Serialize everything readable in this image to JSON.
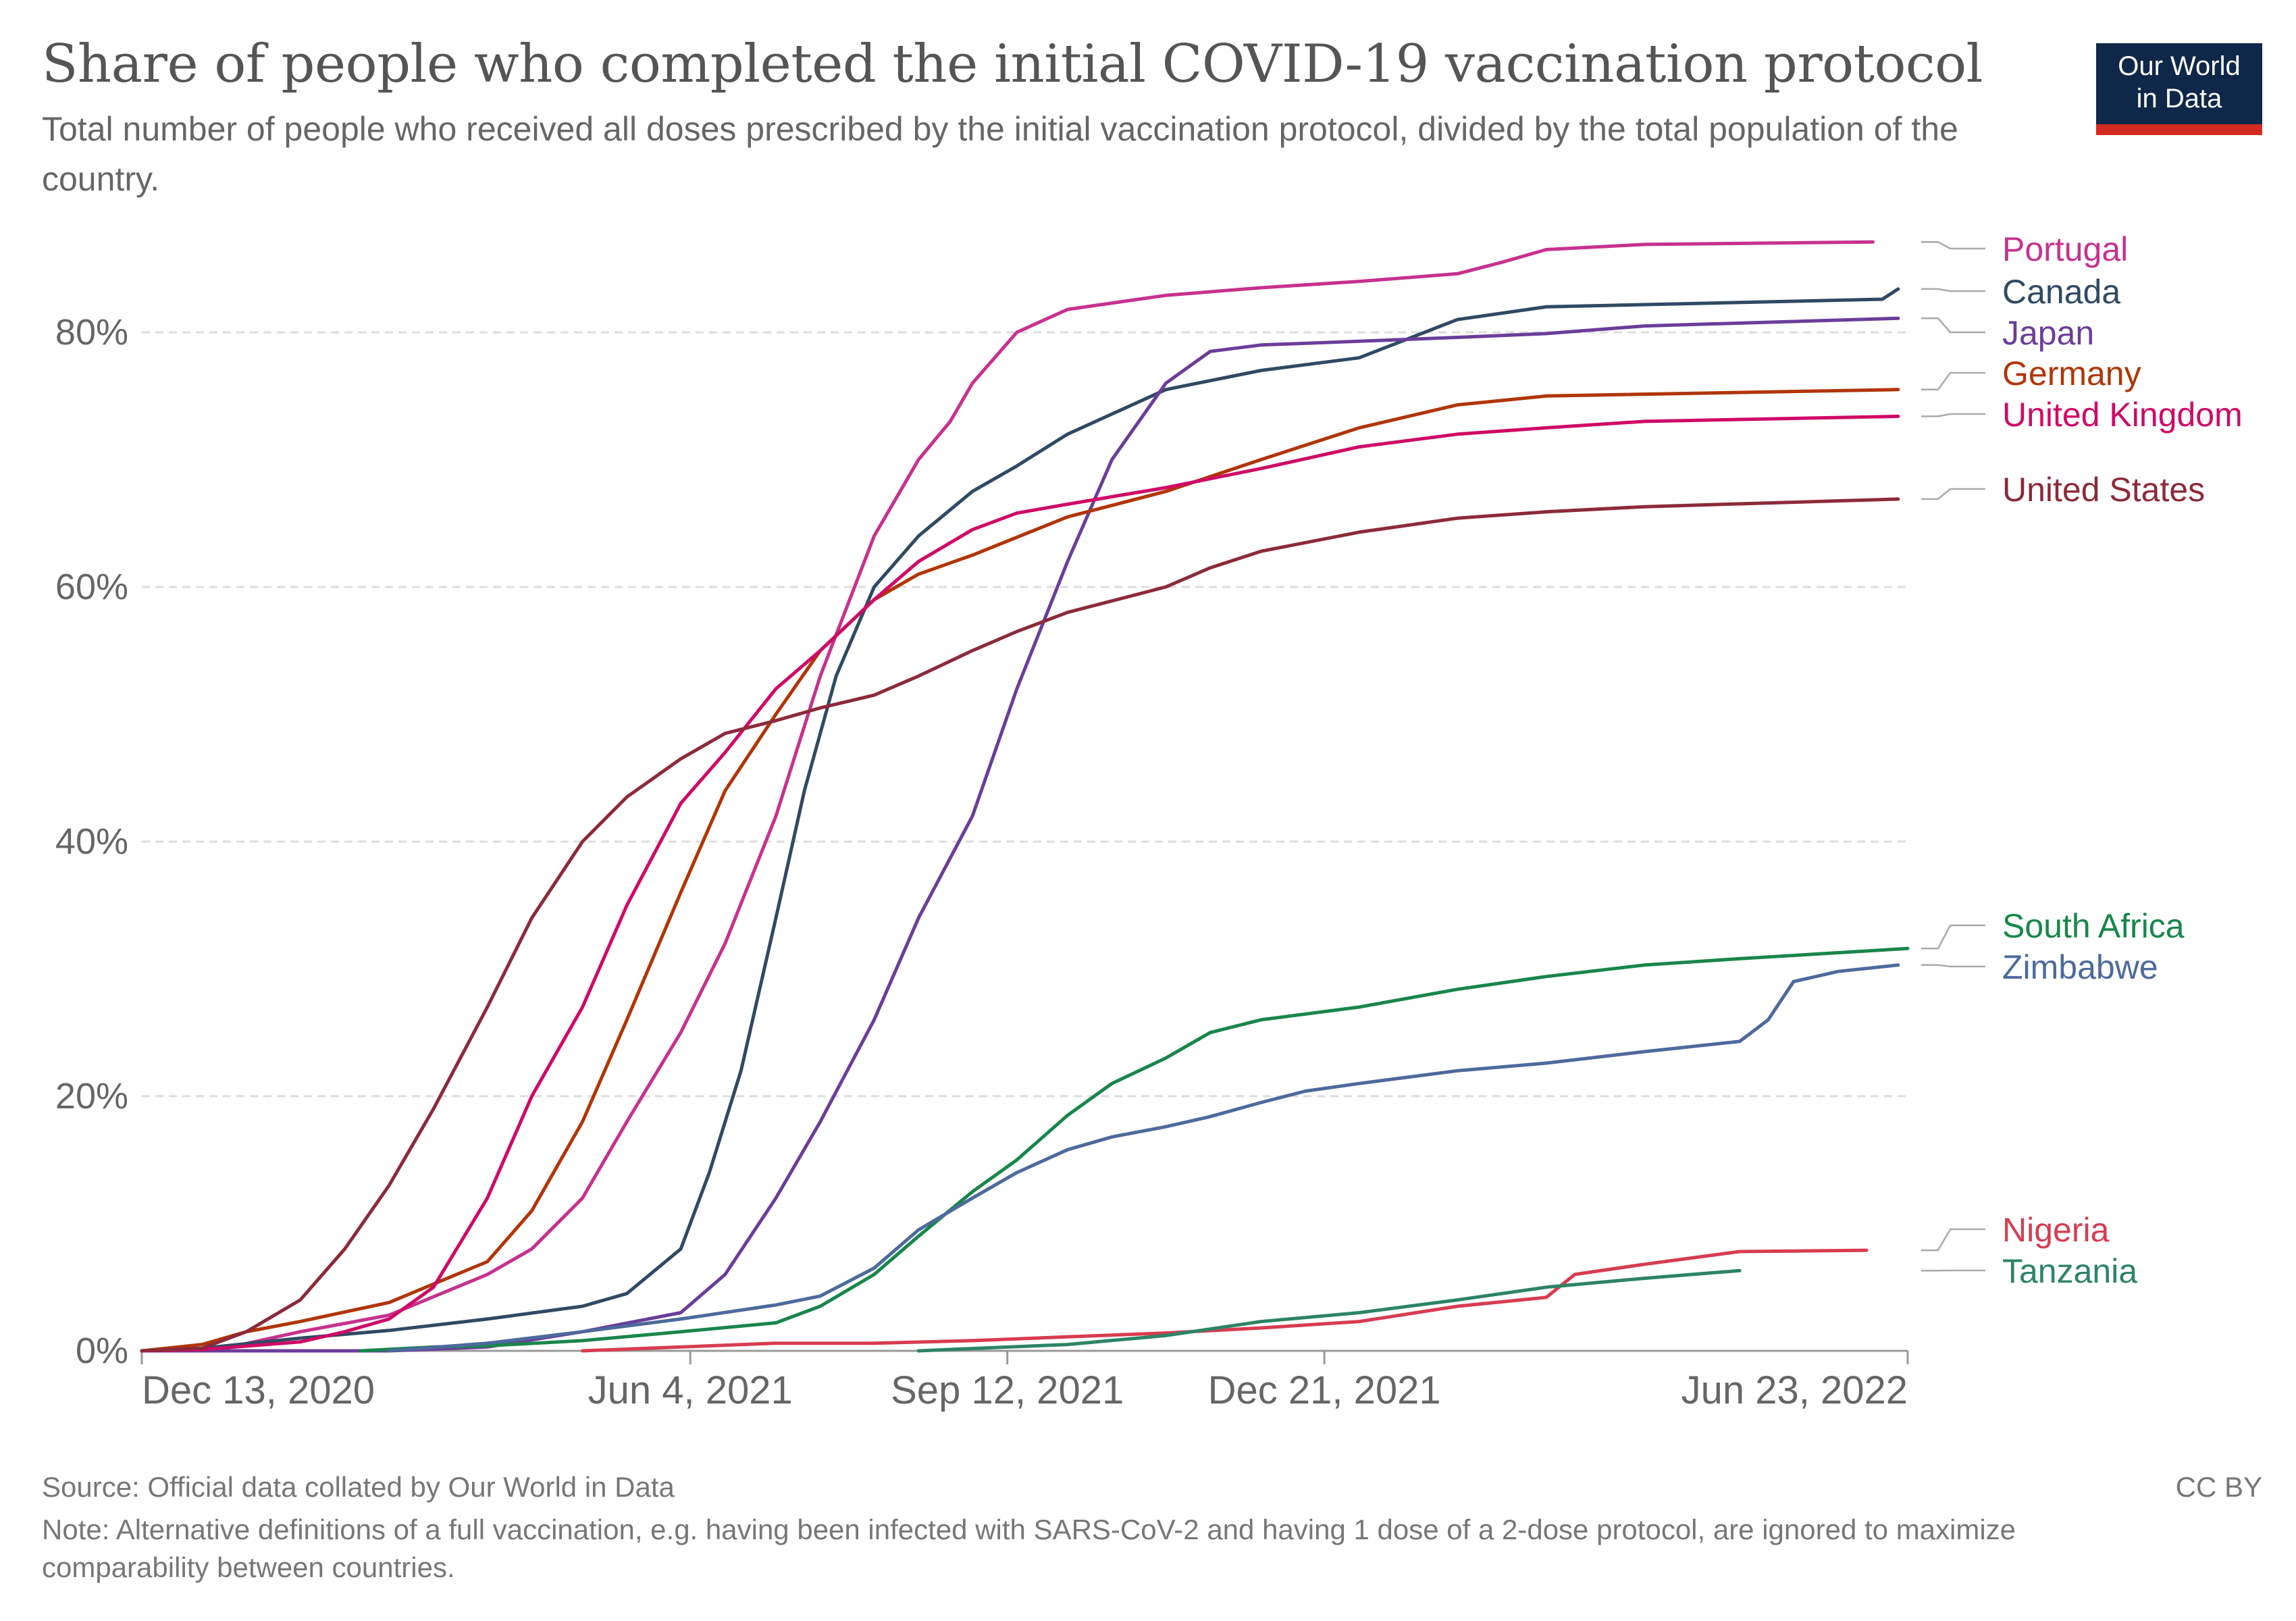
{
  "header": {
    "title": "Share of people who completed the initial COVID-19 vaccination protocol",
    "subtitle": "Total number of people who received all doses prescribed by the initial vaccination protocol, divided by the total population of the country.",
    "logo_line1": "Our World",
    "logo_line2": "in Data"
  },
  "footer": {
    "source": "Source: Official data collated by Our World in Data",
    "license": "CC BY",
    "note": "Note: Alternative definitions of a full vaccination, e.g. having been infected with SARS-CoV-2 and having 1 dose of a 2-dose protocol, are ignored to maximize comparability between countries."
  },
  "colors": {
    "logo_bg": "#0f2749",
    "logo_accent": "#d42b21",
    "grid": "#dddddd",
    "axis_text": "#666666"
  },
  "chart_data": {
    "type": "line",
    "title": "Share of people who completed the initial COVID-19 vaccination protocol",
    "x_ticks": [
      "2020-12-13",
      "2021-06-04",
      "2021-09-12",
      "2021-12-21",
      "2022-06-23"
    ],
    "x_tick_labels": [
      "Dec 13, 2020",
      "Jun 4, 2021",
      "Sep 12, 2021",
      "Dec 21, 2021",
      "Jun 23, 2022"
    ],
    "xlim": [
      "2020-12-13",
      "2022-06-23"
    ],
    "y_ticks": [
      0,
      20,
      40,
      60,
      80
    ],
    "y_tick_labels": [
      "0%",
      "20%",
      "40%",
      "60%",
      "80%"
    ],
    "ylim": [
      0,
      90
    ],
    "grid": "horizontal dashed",
    "legend": "right-side line labels",
    "series": [
      {
        "name": "Portugal",
        "color": "#c7318e",
        "points": [
          [
            "2020-12-13",
            0
          ],
          [
            "2020-12-27",
            0
          ],
          [
            "2021-01-10",
            0.3
          ],
          [
            "2021-02-01",
            1.5
          ],
          [
            "2021-03-01",
            2.8
          ],
          [
            "2021-04-01",
            6
          ],
          [
            "2021-04-15",
            8
          ],
          [
            "2021-05-01",
            12
          ],
          [
            "2021-05-15",
            18
          ],
          [
            "2021-06-01",
            25
          ],
          [
            "2021-06-15",
            32
          ],
          [
            "2021-07-01",
            42
          ],
          [
            "2021-07-15",
            53
          ],
          [
            "2021-08-01",
            64
          ],
          [
            "2021-08-15",
            70
          ],
          [
            "2021-08-25",
            73
          ],
          [
            "2021-09-01",
            76
          ],
          [
            "2021-09-15",
            80
          ],
          [
            "2021-10-01",
            81.8
          ],
          [
            "2021-11-01",
            82.9
          ],
          [
            "2021-12-01",
            83.5
          ],
          [
            "2022-01-01",
            84
          ],
          [
            "2022-02-01",
            84.6
          ],
          [
            "2022-02-15",
            85.5
          ],
          [
            "2022-03-01",
            86.5
          ],
          [
            "2022-04-01",
            86.9
          ],
          [
            "2022-06-12",
            87.1
          ]
        ]
      },
      {
        "name": "Canada",
        "color": "#2f4a63",
        "points": [
          [
            "2020-12-13",
            0
          ],
          [
            "2021-01-01",
            0.2
          ],
          [
            "2021-02-01",
            1
          ],
          [
            "2021-03-01",
            1.6
          ],
          [
            "2021-04-01",
            2.5
          ],
          [
            "2021-05-01",
            3.5
          ],
          [
            "2021-05-15",
            4.5
          ],
          [
            "2021-06-01",
            8
          ],
          [
            "2021-06-10",
            14
          ],
          [
            "2021-06-20",
            22
          ],
          [
            "2021-07-01",
            34
          ],
          [
            "2021-07-10",
            44
          ],
          [
            "2021-07-20",
            53
          ],
          [
            "2021-08-01",
            60
          ],
          [
            "2021-08-15",
            64
          ],
          [
            "2021-09-01",
            67.5
          ],
          [
            "2021-09-15",
            69.5
          ],
          [
            "2021-10-01",
            72
          ],
          [
            "2021-11-01",
            75.5
          ],
          [
            "2021-12-01",
            77
          ],
          [
            "2022-01-01",
            78
          ],
          [
            "2022-02-01",
            81
          ],
          [
            "2022-03-01",
            82
          ],
          [
            "2022-06-15",
            82.6
          ],
          [
            "2022-06-20",
            83.4
          ]
        ]
      },
      {
        "name": "Japan",
        "color": "#6b3d9a",
        "points": [
          [
            "2020-12-13",
            0
          ],
          [
            "2021-03-01",
            0
          ],
          [
            "2021-04-01",
            0.3
          ],
          [
            "2021-05-01",
            1.5
          ],
          [
            "2021-06-01",
            3
          ],
          [
            "2021-06-15",
            6
          ],
          [
            "2021-07-01",
            12
          ],
          [
            "2021-07-15",
            18
          ],
          [
            "2021-08-01",
            26
          ],
          [
            "2021-08-15",
            34
          ],
          [
            "2021-09-01",
            42
          ],
          [
            "2021-09-15",
            52
          ],
          [
            "2021-10-01",
            62
          ],
          [
            "2021-10-15",
            70
          ],
          [
            "2021-11-01",
            76
          ],
          [
            "2021-11-15",
            78.5
          ],
          [
            "2021-12-01",
            79
          ],
          [
            "2022-01-01",
            79.3
          ],
          [
            "2022-02-01",
            79.6
          ],
          [
            "2022-03-01",
            79.9
          ],
          [
            "2022-04-01",
            80.5
          ],
          [
            "2022-06-20",
            81.1
          ]
        ]
      },
      {
        "name": "Germany",
        "color": "#b13507",
        "points": [
          [
            "2020-12-13",
            0
          ],
          [
            "2021-01-01",
            0.5
          ],
          [
            "2021-01-15",
            1.5
          ],
          [
            "2021-02-01",
            2.3
          ],
          [
            "2021-03-01",
            3.8
          ],
          [
            "2021-04-01",
            7
          ],
          [
            "2021-04-15",
            11
          ],
          [
            "2021-05-01",
            18
          ],
          [
            "2021-05-15",
            26
          ],
          [
            "2021-06-01",
            36
          ],
          [
            "2021-06-15",
            44
          ],
          [
            "2021-07-01",
            50
          ],
          [
            "2021-07-15",
            55
          ],
          [
            "2021-08-01",
            59
          ],
          [
            "2021-08-15",
            61
          ],
          [
            "2021-09-01",
            62.5
          ],
          [
            "2021-10-01",
            65.5
          ],
          [
            "2021-11-01",
            67.5
          ],
          [
            "2021-12-01",
            70
          ],
          [
            "2022-01-01",
            72.5
          ],
          [
            "2022-02-01",
            74.3
          ],
          [
            "2022-03-01",
            75
          ],
          [
            "2022-06-20",
            75.5
          ]
        ]
      },
      {
        "name": "United Kingdom",
        "color": "#cf0a66",
        "points": [
          [
            "2020-12-13",
            0
          ],
          [
            "2021-01-01",
            0.1
          ],
          [
            "2021-02-01",
            0.7
          ],
          [
            "2021-02-15",
            1.5
          ],
          [
            "2021-03-01",
            2.5
          ],
          [
            "2021-03-15",
            5
          ],
          [
            "2021-04-01",
            12
          ],
          [
            "2021-04-15",
            20
          ],
          [
            "2021-05-01",
            27
          ],
          [
            "2021-05-15",
            35
          ],
          [
            "2021-06-01",
            43
          ],
          [
            "2021-06-15",
            47
          ],
          [
            "2021-07-01",
            52
          ],
          [
            "2021-07-15",
            55
          ],
          [
            "2021-08-01",
            59
          ],
          [
            "2021-08-15",
            62
          ],
          [
            "2021-09-01",
            64.5
          ],
          [
            "2021-09-15",
            65.8
          ],
          [
            "2021-10-01",
            66.5
          ],
          [
            "2021-11-01",
            67.8
          ],
          [
            "2021-12-01",
            69.3
          ],
          [
            "2022-01-01",
            71
          ],
          [
            "2022-02-01",
            72
          ],
          [
            "2022-03-01",
            72.5
          ],
          [
            "2022-04-01",
            73
          ],
          [
            "2022-06-20",
            73.4
          ]
        ]
      },
      {
        "name": "United States",
        "color": "#8c2a3a",
        "points": [
          [
            "2020-12-13",
            0
          ],
          [
            "2021-01-01",
            0.2
          ],
          [
            "2021-01-15",
            1.5
          ],
          [
            "2021-02-01",
            4
          ],
          [
            "2021-02-15",
            8
          ],
          [
            "2021-03-01",
            13
          ],
          [
            "2021-03-15",
            19
          ],
          [
            "2021-04-01",
            27
          ],
          [
            "2021-04-15",
            34
          ],
          [
            "2021-05-01",
            40
          ],
          [
            "2021-05-15",
            43.5
          ],
          [
            "2021-06-01",
            46.5
          ],
          [
            "2021-06-15",
            48.5
          ],
          [
            "2021-07-01",
            49.5
          ],
          [
            "2021-07-15",
            50.5
          ],
          [
            "2021-08-01",
            51.5
          ],
          [
            "2021-08-15",
            53
          ],
          [
            "2021-09-01",
            55
          ],
          [
            "2021-09-15",
            56.5
          ],
          [
            "2021-10-01",
            58
          ],
          [
            "2021-11-01",
            60
          ],
          [
            "2021-11-15",
            61.5
          ],
          [
            "2021-12-01",
            62.8
          ],
          [
            "2022-01-01",
            64.3
          ],
          [
            "2022-02-01",
            65.4
          ],
          [
            "2022-03-01",
            65.9
          ],
          [
            "2022-04-01",
            66.3
          ],
          [
            "2022-06-20",
            66.9
          ]
        ]
      },
      {
        "name": "South Africa",
        "color": "#18864b",
        "points": [
          [
            "2021-02-20",
            0
          ],
          [
            "2021-03-15",
            0.3
          ],
          [
            "2021-04-01",
            0.4
          ],
          [
            "2021-05-01",
            0.8
          ],
          [
            "2021-06-01",
            1.5
          ],
          [
            "2021-07-01",
            2.2
          ],
          [
            "2021-07-15",
            3.5
          ],
          [
            "2021-08-01",
            6
          ],
          [
            "2021-08-15",
            9
          ],
          [
            "2021-09-01",
            12.5
          ],
          [
            "2021-09-15",
            15
          ],
          [
            "2021-10-01",
            18.5
          ],
          [
            "2021-10-15",
            21
          ],
          [
            "2021-11-01",
            23
          ],
          [
            "2021-11-15",
            25
          ],
          [
            "2021-12-01",
            26
          ],
          [
            "2022-01-01",
            27
          ],
          [
            "2022-02-01",
            28.4
          ],
          [
            "2022-03-01",
            29.4
          ],
          [
            "2022-04-01",
            30.3
          ],
          [
            "2022-05-01",
            30.8
          ],
          [
            "2022-06-23",
            31.6
          ]
        ]
      },
      {
        "name": "Zimbabwe",
        "color": "#4c6a9c",
        "points": [
          [
            "2021-03-01",
            0
          ],
          [
            "2021-04-01",
            0.6
          ],
          [
            "2021-05-01",
            1.5
          ],
          [
            "2021-06-01",
            2.5
          ],
          [
            "2021-07-01",
            3.6
          ],
          [
            "2021-07-15",
            4.3
          ],
          [
            "2021-08-01",
            6.5
          ],
          [
            "2021-08-15",
            9.5
          ],
          [
            "2021-09-01",
            12
          ],
          [
            "2021-09-15",
            14
          ],
          [
            "2021-10-01",
            15.8
          ],
          [
            "2021-10-15",
            16.8
          ],
          [
            "2021-11-01",
            17.6
          ],
          [
            "2021-11-15",
            18.4
          ],
          [
            "2021-12-01",
            19.5
          ],
          [
            "2021-12-15",
            20.4
          ],
          [
            "2022-01-01",
            21
          ],
          [
            "2022-02-01",
            22
          ],
          [
            "2022-03-01",
            22.6
          ],
          [
            "2022-04-01",
            23.5
          ],
          [
            "2022-05-01",
            24.3
          ],
          [
            "2022-05-10",
            26
          ],
          [
            "2022-05-18",
            29
          ],
          [
            "2022-06-01",
            29.8
          ],
          [
            "2022-06-20",
            30.3
          ]
        ]
      },
      {
        "name": "Nigeria",
        "color": "#d73c50",
        "points": [
          [
            "2021-05-01",
            0
          ],
          [
            "2021-06-01",
            0.3
          ],
          [
            "2021-07-01",
            0.6
          ],
          [
            "2021-08-01",
            0.6
          ],
          [
            "2021-09-01",
            0.8
          ],
          [
            "2021-10-01",
            1.1
          ],
          [
            "2021-11-01",
            1.4
          ],
          [
            "2021-12-01",
            1.8
          ],
          [
            "2022-01-01",
            2.3
          ],
          [
            "2022-02-01",
            3.5
          ],
          [
            "2022-03-01",
            4.2
          ],
          [
            "2022-03-10",
            6
          ],
          [
            "2022-04-01",
            6.8
          ],
          [
            "2022-05-01",
            7.8
          ],
          [
            "2022-06-10",
            7.9
          ]
        ]
      },
      {
        "name": "Tanzania",
        "color": "#2c8465",
        "points": [
          [
            "2021-08-15",
            0
          ],
          [
            "2021-10-01",
            0.5
          ],
          [
            "2021-11-01",
            1.2
          ],
          [
            "2021-12-01",
            2.3
          ],
          [
            "2022-01-01",
            3
          ],
          [
            "2022-02-01",
            4
          ],
          [
            "2022-03-01",
            5
          ],
          [
            "2022-04-01",
            5.7
          ],
          [
            "2022-05-01",
            6.3
          ]
        ]
      }
    ]
  }
}
